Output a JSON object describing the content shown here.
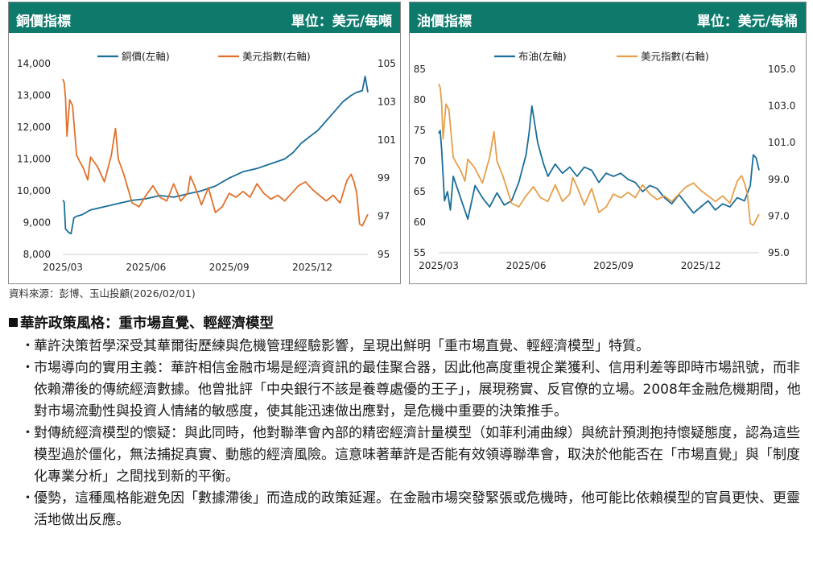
{
  "charts_panel": {
    "left": {
      "title": "銅價指標",
      "unit": "單位：美元/每噸"
    },
    "right": {
      "title": "油價指標",
      "unit": "單位：美元/每桶"
    }
  },
  "chart_data": [
    {
      "type": "line",
      "title": "銅價指標",
      "unit_label": "單位：美元/每噸",
      "x_ticks": [
        "2025/03",
        "2025/06",
        "2025/09",
        "2025/12"
      ],
      "x_range_months": [
        0,
        11
      ],
      "y_left": {
        "range": [
          8000,
          14000
        ],
        "ticks": [
          "8,000",
          "9,000",
          "10,000",
          "11,000",
          "12,000",
          "13,000",
          "14,000"
        ],
        "tick_values": [
          8000,
          9000,
          10000,
          11000,
          12000,
          13000,
          14000
        ]
      },
      "y_right": {
        "range": [
          95,
          105
        ],
        "ticks": [
          "95",
          "97",
          "99",
          "101",
          "103",
          "105"
        ],
        "tick_values": [
          95,
          97,
          99,
          101,
          103,
          105
        ]
      },
      "series": [
        {
          "name": "銅價(左軸)",
          "axis": "left",
          "color": "#1a6e9a",
          "x": [
            0,
            0.05,
            0.1,
            0.15,
            0.2,
            0.3,
            0.4,
            0.5,
            0.7,
            1.0,
            1.5,
            2.0,
            2.5,
            3.0,
            3.5,
            4.0,
            4.5,
            5.0,
            5.5,
            6.0,
            6.5,
            7.0,
            7.5,
            8.0,
            8.3,
            8.6,
            8.9,
            9.2,
            9.5,
            9.8,
            10.1,
            10.4,
            10.6,
            10.8,
            10.9,
            11.0
          ],
          "values": [
            9700,
            9650,
            8800,
            8750,
            8700,
            8650,
            9150,
            9200,
            9250,
            9400,
            9500,
            9600,
            9700,
            9750,
            9850,
            9800,
            9900,
            10000,
            10150,
            10400,
            10600,
            10700,
            10850,
            11000,
            11200,
            11500,
            11700,
            11900,
            12200,
            12500,
            12800,
            13000,
            13100,
            13150,
            13600,
            13100
          ]
        },
        {
          "name": "美元指數(右軸)",
          "axis": "right",
          "color": "#e0712c",
          "x": [
            0,
            0.05,
            0.1,
            0.15,
            0.25,
            0.35,
            0.5,
            0.6,
            0.75,
            0.9,
            1.0,
            1.25,
            1.5,
            1.75,
            1.9,
            2.0,
            2.2,
            2.5,
            2.75,
            3.0,
            3.25,
            3.5,
            3.75,
            4.0,
            4.25,
            4.5,
            4.6,
            4.75,
            5.0,
            5.25,
            5.5,
            5.75,
            6.0,
            6.25,
            6.5,
            6.75,
            7.0,
            7.25,
            7.5,
            7.75,
            8.0,
            8.25,
            8.5,
            8.75,
            9.0,
            9.25,
            9.5,
            9.75,
            10.0,
            10.25,
            10.4,
            10.5,
            10.6,
            10.7,
            10.8,
            11.0
          ],
          "values": [
            104.2,
            104.0,
            103.2,
            101.2,
            103.1,
            102.8,
            100.2,
            99.9,
            99.5,
            98.9,
            100.1,
            99.6,
            98.8,
            100.2,
            101.6,
            100.0,
            99.2,
            97.7,
            97.5,
            98.1,
            98.6,
            98.0,
            97.8,
            98.7,
            97.8,
            98.2,
            99.1,
            98.6,
            97.6,
            98.5,
            97.2,
            97.5,
            98.2,
            98.0,
            98.3,
            98.0,
            98.7,
            98.2,
            97.9,
            98.1,
            97.8,
            98.2,
            98.6,
            98.8,
            98.4,
            98.1,
            97.8,
            98.1,
            97.7,
            98.9,
            99.2,
            98.8,
            98.2,
            96.6,
            96.5,
            97.1
          ]
        }
      ]
    },
    {
      "type": "line",
      "title": "油價指標",
      "unit_label": "單位：美元/每桶",
      "x_ticks": [
        "2025/03",
        "2025/06",
        "2025/09",
        "2025/12"
      ],
      "x_range_months": [
        0,
        11
      ],
      "y_left": {
        "range": [
          55,
          85
        ],
        "ticks": [
          "55",
          "60",
          "65",
          "70",
          "75",
          "80",
          "85"
        ],
        "tick_values": [
          55,
          60,
          65,
          70,
          75,
          80,
          85
        ]
      },
      "y_right": {
        "range": [
          95,
          105
        ],
        "ticks": [
          "95.0",
          "97.0",
          "99.0",
          "101.0",
          "103.0",
          "105.0"
        ],
        "tick_values": [
          95,
          97,
          99,
          101,
          103,
          105
        ]
      },
      "series": [
        {
          "name": "布油(左軸)",
          "axis": "left",
          "color": "#1a6e9a",
          "x": [
            0,
            0.05,
            0.1,
            0.2,
            0.3,
            0.4,
            0.5,
            0.75,
            1.0,
            1.25,
            1.5,
            1.75,
            2.0,
            2.25,
            2.5,
            2.75,
            3.0,
            3.1,
            3.2,
            3.3,
            3.4,
            3.6,
            3.75,
            4.0,
            4.25,
            4.5,
            4.75,
            5.0,
            5.25,
            5.5,
            5.75,
            6.0,
            6.25,
            6.5,
            6.75,
            7.0,
            7.25,
            7.5,
            7.75,
            8.0,
            8.25,
            8.5,
            8.75,
            9.0,
            9.25,
            9.5,
            9.75,
            10.0,
            10.25,
            10.5,
            10.7,
            10.8,
            10.9,
            11.0
          ],
          "values": [
            74.5,
            75.0,
            72.0,
            63.5,
            65.0,
            62.0,
            67.5,
            64.0,
            60.5,
            66.0,
            64.0,
            62.5,
            64.8,
            62.8,
            63.5,
            66.5,
            71.0,
            74.5,
            79.0,
            76.0,
            73.0,
            69.5,
            67.5,
            69.5,
            68.0,
            69.0,
            67.5,
            69.0,
            68.5,
            66.5,
            68.0,
            67.5,
            68.0,
            67.0,
            66.5,
            65.0,
            66.0,
            65.5,
            64.0,
            63.0,
            64.5,
            63.0,
            61.5,
            62.5,
            63.5,
            62.0,
            63.0,
            62.5,
            64.0,
            63.5,
            66.0,
            71.0,
            70.5,
            68.5
          ]
        },
        {
          "name": "美元指數(右軸)",
          "axis": "right",
          "color": "#e79f4a",
          "x": [
            0,
            0.05,
            0.1,
            0.15,
            0.25,
            0.35,
            0.5,
            0.6,
            0.75,
            0.9,
            1.0,
            1.25,
            1.5,
            1.75,
            1.9,
            2.0,
            2.2,
            2.5,
            2.75,
            3.0,
            3.25,
            3.5,
            3.75,
            4.0,
            4.25,
            4.5,
            4.6,
            4.75,
            5.0,
            5.25,
            5.5,
            5.75,
            6.0,
            6.25,
            6.5,
            6.75,
            7.0,
            7.25,
            7.5,
            7.75,
            8.0,
            8.25,
            8.5,
            8.75,
            9.0,
            9.25,
            9.5,
            9.75,
            10.0,
            10.25,
            10.4,
            10.5,
            10.6,
            10.7,
            10.8,
            11.0
          ],
          "values": [
            104.2,
            104.0,
            103.2,
            101.2,
            103.1,
            102.8,
            100.2,
            99.9,
            99.5,
            98.9,
            100.1,
            99.6,
            98.8,
            100.2,
            101.6,
            100.0,
            99.2,
            97.7,
            97.5,
            98.1,
            98.6,
            98.0,
            97.8,
            98.7,
            97.8,
            98.2,
            99.1,
            98.6,
            97.6,
            98.5,
            97.2,
            97.5,
            98.2,
            98.0,
            98.3,
            98.0,
            98.7,
            98.2,
            97.9,
            98.1,
            97.8,
            98.2,
            98.6,
            98.8,
            98.4,
            98.1,
            97.8,
            98.1,
            97.7,
            98.9,
            99.2,
            98.8,
            98.2,
            96.6,
            96.5,
            97.1
          ]
        }
      ]
    }
  ],
  "source_note": "資料來源：彭博、玉山投顧(2026/02/01)",
  "section": {
    "title": "華許政策風格：重市場直覺、輕經濟模型",
    "bullets": [
      "華許決策哲學深受其華爾街歷練與危機管理經驗影響，呈現出鮮明「重市場直覺、輕經濟模型」特質。",
      "市場導向的實用主義：華許相信金融市場是經濟資訊的最佳聚合器，因此他高度重視企業獲利、信用利差等即時市場訊號，而非依賴滯後的傳統經濟數據。他曾批評「中央銀行不該是養尊處優的王子」，展現務實、反官僚的立場。2008年金融危機期間，他對市場流動性與投資人情緒的敏感度，使其能迅速做出應對，是危機中重要的決策推手。",
      "對傳統經濟模型的懷疑：與此同時，他對聯準會內部的精密經濟計量模型（如菲利浦曲線）與統計預測抱持懷疑態度，認為這些模型過於僵化，無法捕捉真實、動態的經濟風險。這意味著華許是否能有效領導聯準會，取決於他能否在「市場直覺」與「制度化專業分析」之間找到新的平衡。",
      "優勢，這種風格能避免因「數據滯後」而造成的政策延遲。在金融市場突發緊張或危機時，他可能比依賴模型的官員更快、更靈活地做出反應。"
    ]
  }
}
